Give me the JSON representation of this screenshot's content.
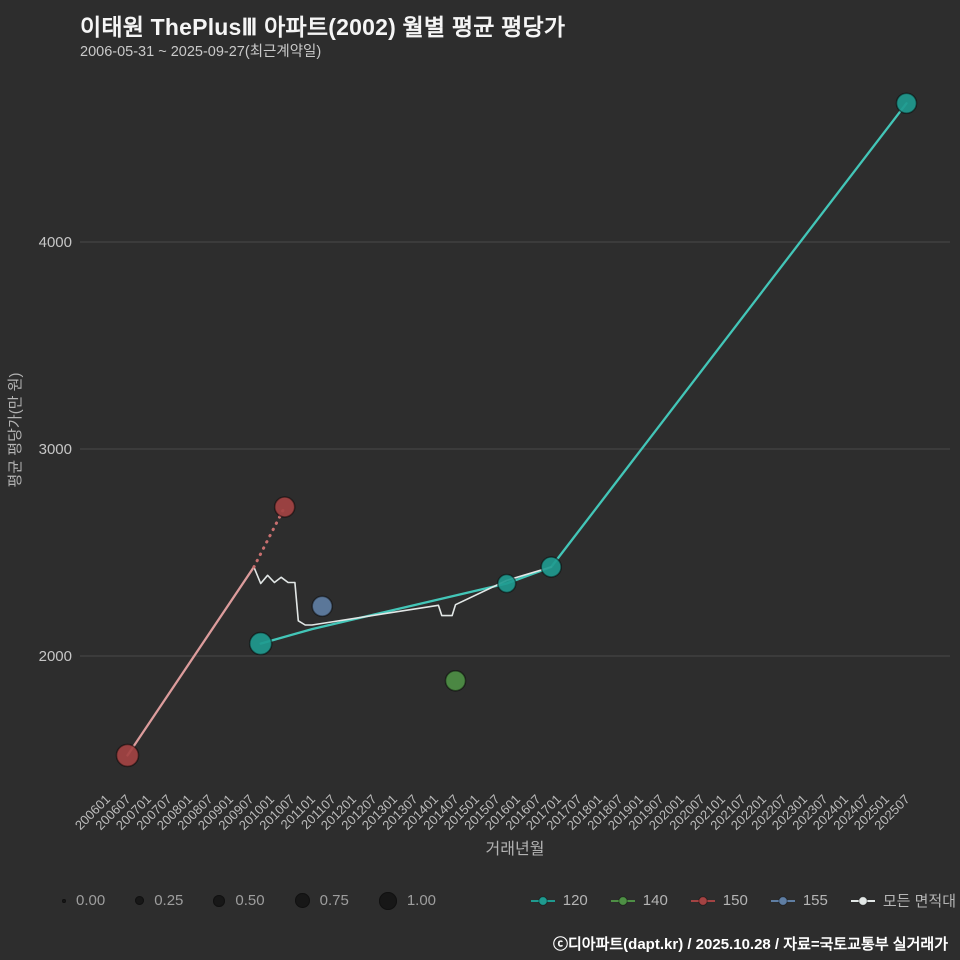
{
  "header": {
    "title": "이태원 ThePlusⅢ 아파트(2002) 월별 평균 평당가",
    "subtitle": "2006-05-31 ~ 2025-09-27(최근계약일)"
  },
  "footer": {
    "credit": "ⓒ디아파트(dapt.kr) / 2025.10.28 / 자료=국토교통부 실거래가"
  },
  "axes": {
    "y_label": "평균 평당가(만 원)",
    "x_label": "거래년월",
    "y_ticks": [
      2000,
      3000,
      4000
    ],
    "x_ticks": [
      "200601",
      "200607",
      "200701",
      "200707",
      "200801",
      "200807",
      "200901",
      "200907",
      "201001",
      "201007",
      "201101",
      "201107",
      "201201",
      "201207",
      "201301",
      "201307",
      "201401",
      "201407",
      "201501",
      "201507",
      "201601",
      "201607",
      "201701",
      "201707",
      "201801",
      "201807",
      "201901",
      "201907",
      "202001",
      "202007",
      "202101",
      "202107",
      "202201",
      "202207",
      "202301",
      "202307",
      "202401",
      "202407",
      "202501",
      "202507"
    ]
  },
  "size_legend": {
    "labels": [
      "0.00",
      "0.25",
      "0.50",
      "0.75",
      "1.00"
    ],
    "radii": [
      2,
      4.5,
      6,
      7.5,
      9
    ],
    "dot_color": "#171717"
  },
  "series_legend": [
    {
      "label": "120",
      "color": "#1f9a8f"
    },
    {
      "label": "140",
      "color": "#4e8f45"
    },
    {
      "label": "150",
      "color": "#a34343"
    },
    {
      "label": "155",
      "color": "#5f7ea3"
    },
    {
      "label": "모든 면적대 평",
      "color": "#e2e7e6"
    }
  ],
  "chart_data": {
    "type": "scatter",
    "title": "이태원 ThePlusⅢ 아파트(2002) 월별 평균 평당가",
    "xlabel": "거래년월",
    "ylabel": "평균 평당가(만 원)",
    "x_range": [
      "200601",
      "202507"
    ],
    "ylim": [
      1400,
      4800
    ],
    "grid": "horizontal",
    "legend_position": "bottom",
    "colors": {
      "background": "#2d2d2d",
      "grid": "#494949",
      "tick_text": "#bdbdbd"
    },
    "series": [
      {
        "name": "120",
        "point_color": "#1f9a8f",
        "line_color": "#43c6b8",
        "line": [
          [
            200910,
            2060
          ],
          [
            201101,
            2130
          ],
          [
            201510,
            2350
          ],
          [
            201611,
            2430
          ],
          [
            202507,
            4670
          ]
        ],
        "points": [
          [
            200910,
            2060,
            11
          ],
          [
            201510,
            2350,
            9
          ],
          [
            201611,
            2430,
            10
          ],
          [
            202507,
            4670,
            10
          ]
        ]
      },
      {
        "name": "140",
        "point_color": "#4e8f45",
        "points": [
          [
            201407,
            1880,
            10
          ]
        ]
      },
      {
        "name": "150",
        "point_color": "#a34343",
        "line_color": "#dc9c9c",
        "dotted_color": "#c96f6f",
        "line": [
          [
            200607,
            1520
          ],
          [
            200908,
            2430
          ]
        ],
        "dotted": [
          [
            200908,
            2430
          ],
          [
            201005,
            2720
          ]
        ],
        "points": [
          [
            200607,
            1520,
            11
          ],
          [
            201005,
            2720,
            10
          ]
        ]
      },
      {
        "name": "155",
        "point_color": "#5f7ea3",
        "points": [
          [
            201104,
            2240,
            10
          ]
        ]
      },
      {
        "name": "모든 면적대 평균",
        "line_color": "#e2e7e6",
        "line": [
          [
            200908,
            2430
          ],
          [
            200910,
            2350
          ],
          [
            200912,
            2390
          ],
          [
            201002,
            2355
          ],
          [
            201004,
            2380
          ],
          [
            201006,
            2355
          ],
          [
            201008,
            2355
          ],
          [
            201009,
            2170
          ],
          [
            201011,
            2150
          ],
          [
            201101,
            2150
          ],
          [
            201402,
            2245
          ],
          [
            201403,
            2195
          ],
          [
            201406,
            2195
          ],
          [
            201407,
            2248
          ],
          [
            201510,
            2365
          ],
          [
            201611,
            2430
          ]
        ]
      }
    ]
  }
}
